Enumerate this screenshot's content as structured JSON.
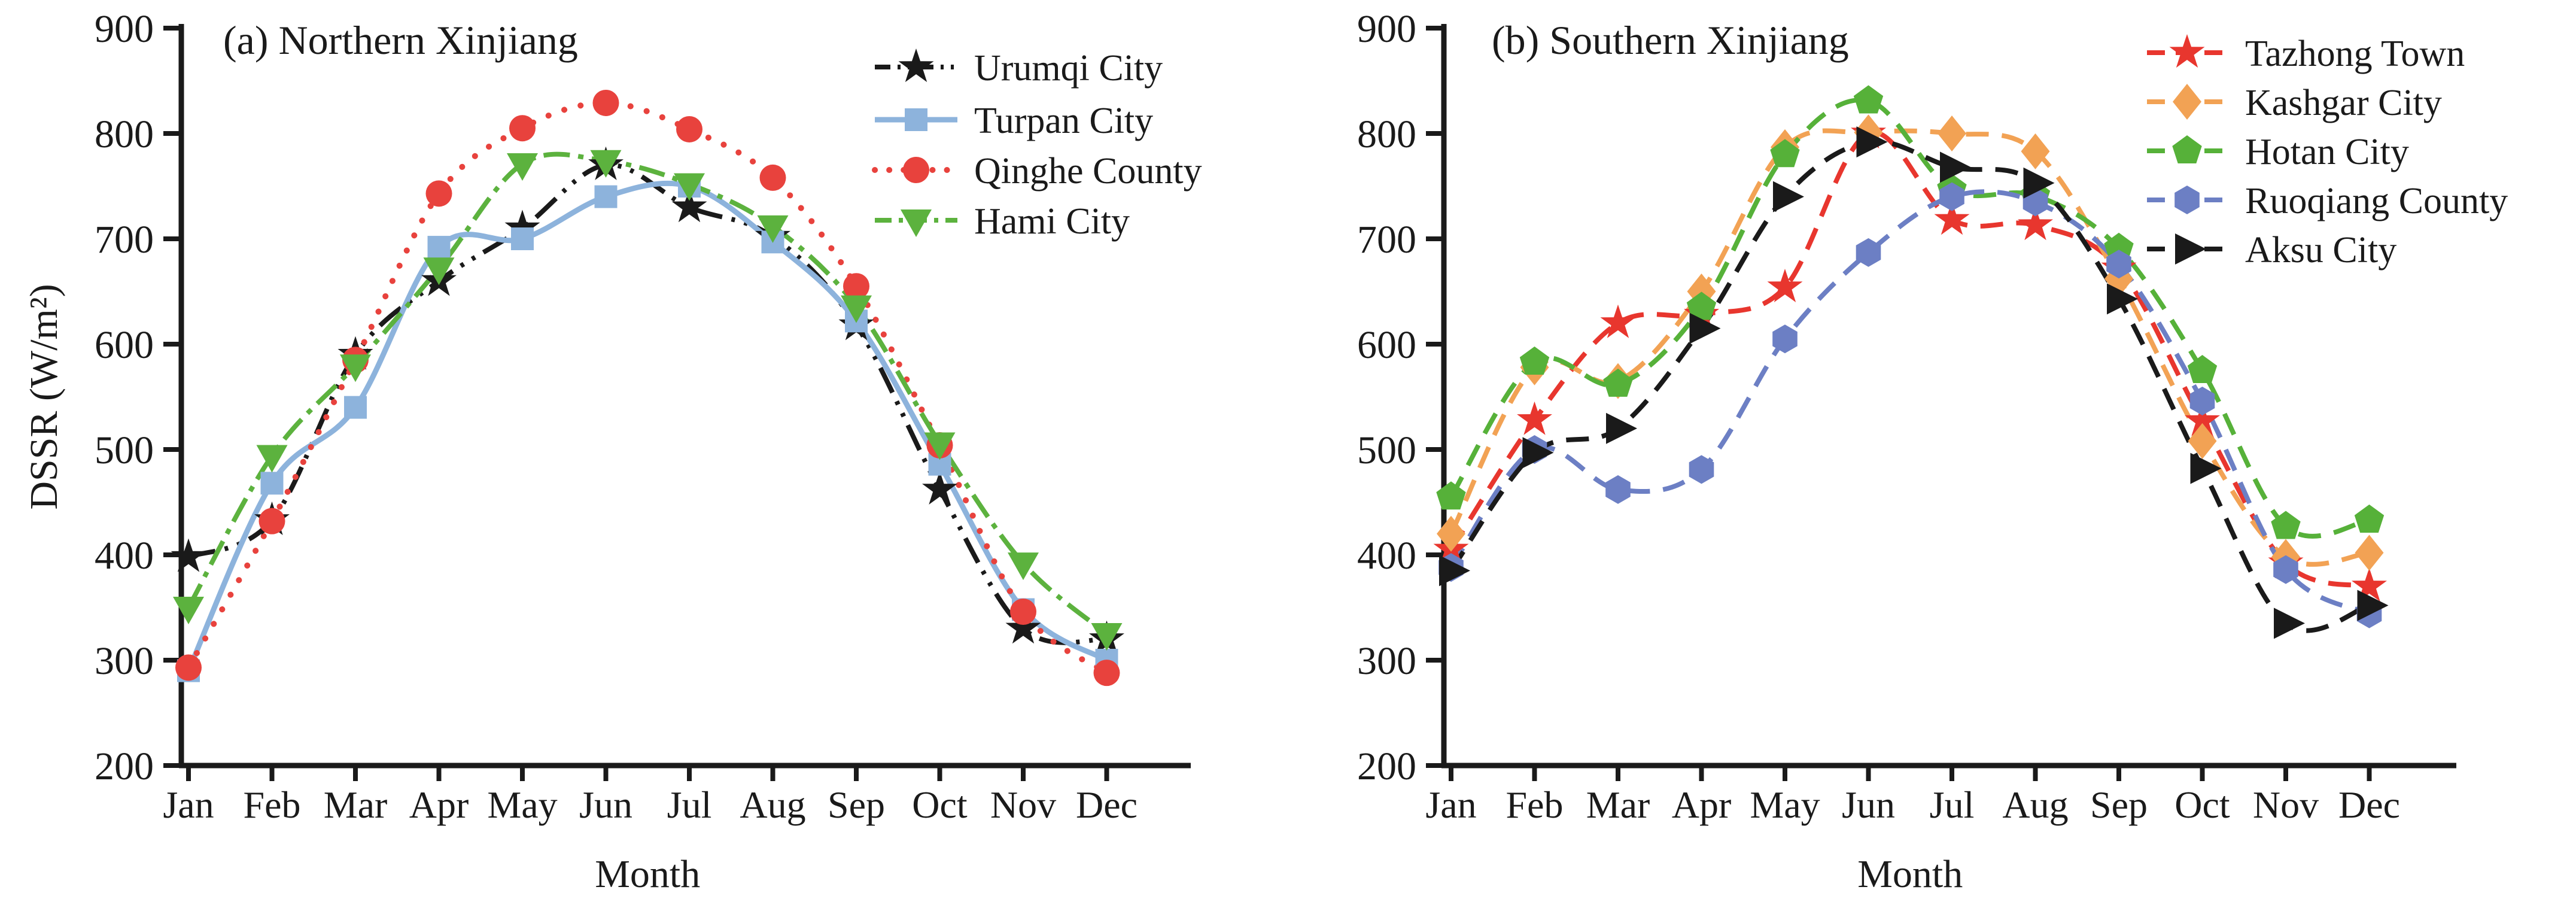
{
  "figure": {
    "background": "#ffffff",
    "text_color": "#1a1a1a"
  },
  "chart_data": [
    {
      "type": "line",
      "panel_id": "a",
      "title": "(a) Northern Xinjiang",
      "xlabel": "Month",
      "ylabel": "DSSR (W/m²)",
      "categories": [
        "Jan",
        "Feb",
        "Mar",
        "Apr",
        "May",
        "Jun",
        "Jul",
        "Aug",
        "Sep",
        "Oct",
        "Nov",
        "Dec"
      ],
      "ylim": [
        200,
        900
      ],
      "yticks": [
        200,
        300,
        400,
        500,
        600,
        700,
        800,
        900
      ],
      "grid": false,
      "legend_position": "top-right-inside",
      "series": [
        {
          "name": "Urumqi City",
          "color": "#1a1a1a",
          "line_style": "dash-dot-dot",
          "marker": "star",
          "values": [
            398,
            433,
            590,
            660,
            710,
            770,
            730,
            702,
            618,
            462,
            330,
            320
          ]
        },
        {
          "name": "Turpan City",
          "color": "#8DB3DC",
          "line_style": "solid",
          "marker": "square",
          "values": [
            290,
            468,
            540,
            692,
            700,
            740,
            750,
            697,
            622,
            486,
            348,
            300
          ]
        },
        {
          "name": "Qinghe County",
          "color": "#E8423D",
          "line_style": "dotted",
          "marker": "circle",
          "values": [
            293,
            432,
            585,
            743,
            805,
            829,
            804,
            758,
            655,
            504,
            346,
            288
          ]
        },
        {
          "name": "Hami City",
          "color": "#5CB23E",
          "line_style": "dash-dot",
          "marker": "triangle-down",
          "values": [
            350,
            494,
            580,
            672,
            771,
            774,
            752,
            712,
            636,
            506,
            392,
            325
          ]
        }
      ]
    },
    {
      "type": "line",
      "panel_id": "b",
      "title": "(b) Southern Xinjiang",
      "xlabel": "Month",
      "ylabel": "",
      "categories": [
        "Jan",
        "Feb",
        "Mar",
        "Apr",
        "May",
        "Jun",
        "Jul",
        "Aug",
        "Sep",
        "Oct",
        "Nov",
        "Dec"
      ],
      "ylim": [
        200,
        900
      ],
      "yticks": [
        200,
        300,
        400,
        500,
        600,
        700,
        800,
        900
      ],
      "grid": false,
      "legend_position": "top-right-inside",
      "series": [
        {
          "name": "Tazhong Town",
          "color": "#E8362E",
          "line_style": "dashed",
          "marker": "star",
          "values": [
            405,
            528,
            620,
            628,
            654,
            800,
            718,
            713,
            672,
            527,
            392,
            370
          ]
        },
        {
          "name": "Kashgar City",
          "color": "#F2A254",
          "line_style": "dashed",
          "marker": "diamond",
          "values": [
            420,
            578,
            565,
            650,
            787,
            801,
            800,
            783,
            662,
            508,
            398,
            402
          ]
        },
        {
          "name": "Hotan City",
          "color": "#56B139",
          "line_style": "dashed",
          "marker": "pentagon",
          "values": [
            455,
            583,
            562,
            635,
            780,
            831,
            747,
            741,
            691,
            575,
            427,
            433
          ]
        },
        {
          "name": "Ruoqiang County",
          "color": "#6C7FC4",
          "line_style": "dashed",
          "marker": "hexagon",
          "values": [
            388,
            500,
            462,
            481,
            605,
            687,
            740,
            735,
            676,
            546,
            386,
            344
          ]
        },
        {
          "name": "Aksu City",
          "color": "#1a1a1a",
          "line_style": "dashed",
          "marker": "triangle-right",
          "values": [
            385,
            497,
            520,
            615,
            740,
            792,
            768,
            753,
            643,
            482,
            335,
            352
          ]
        }
      ]
    }
  ]
}
